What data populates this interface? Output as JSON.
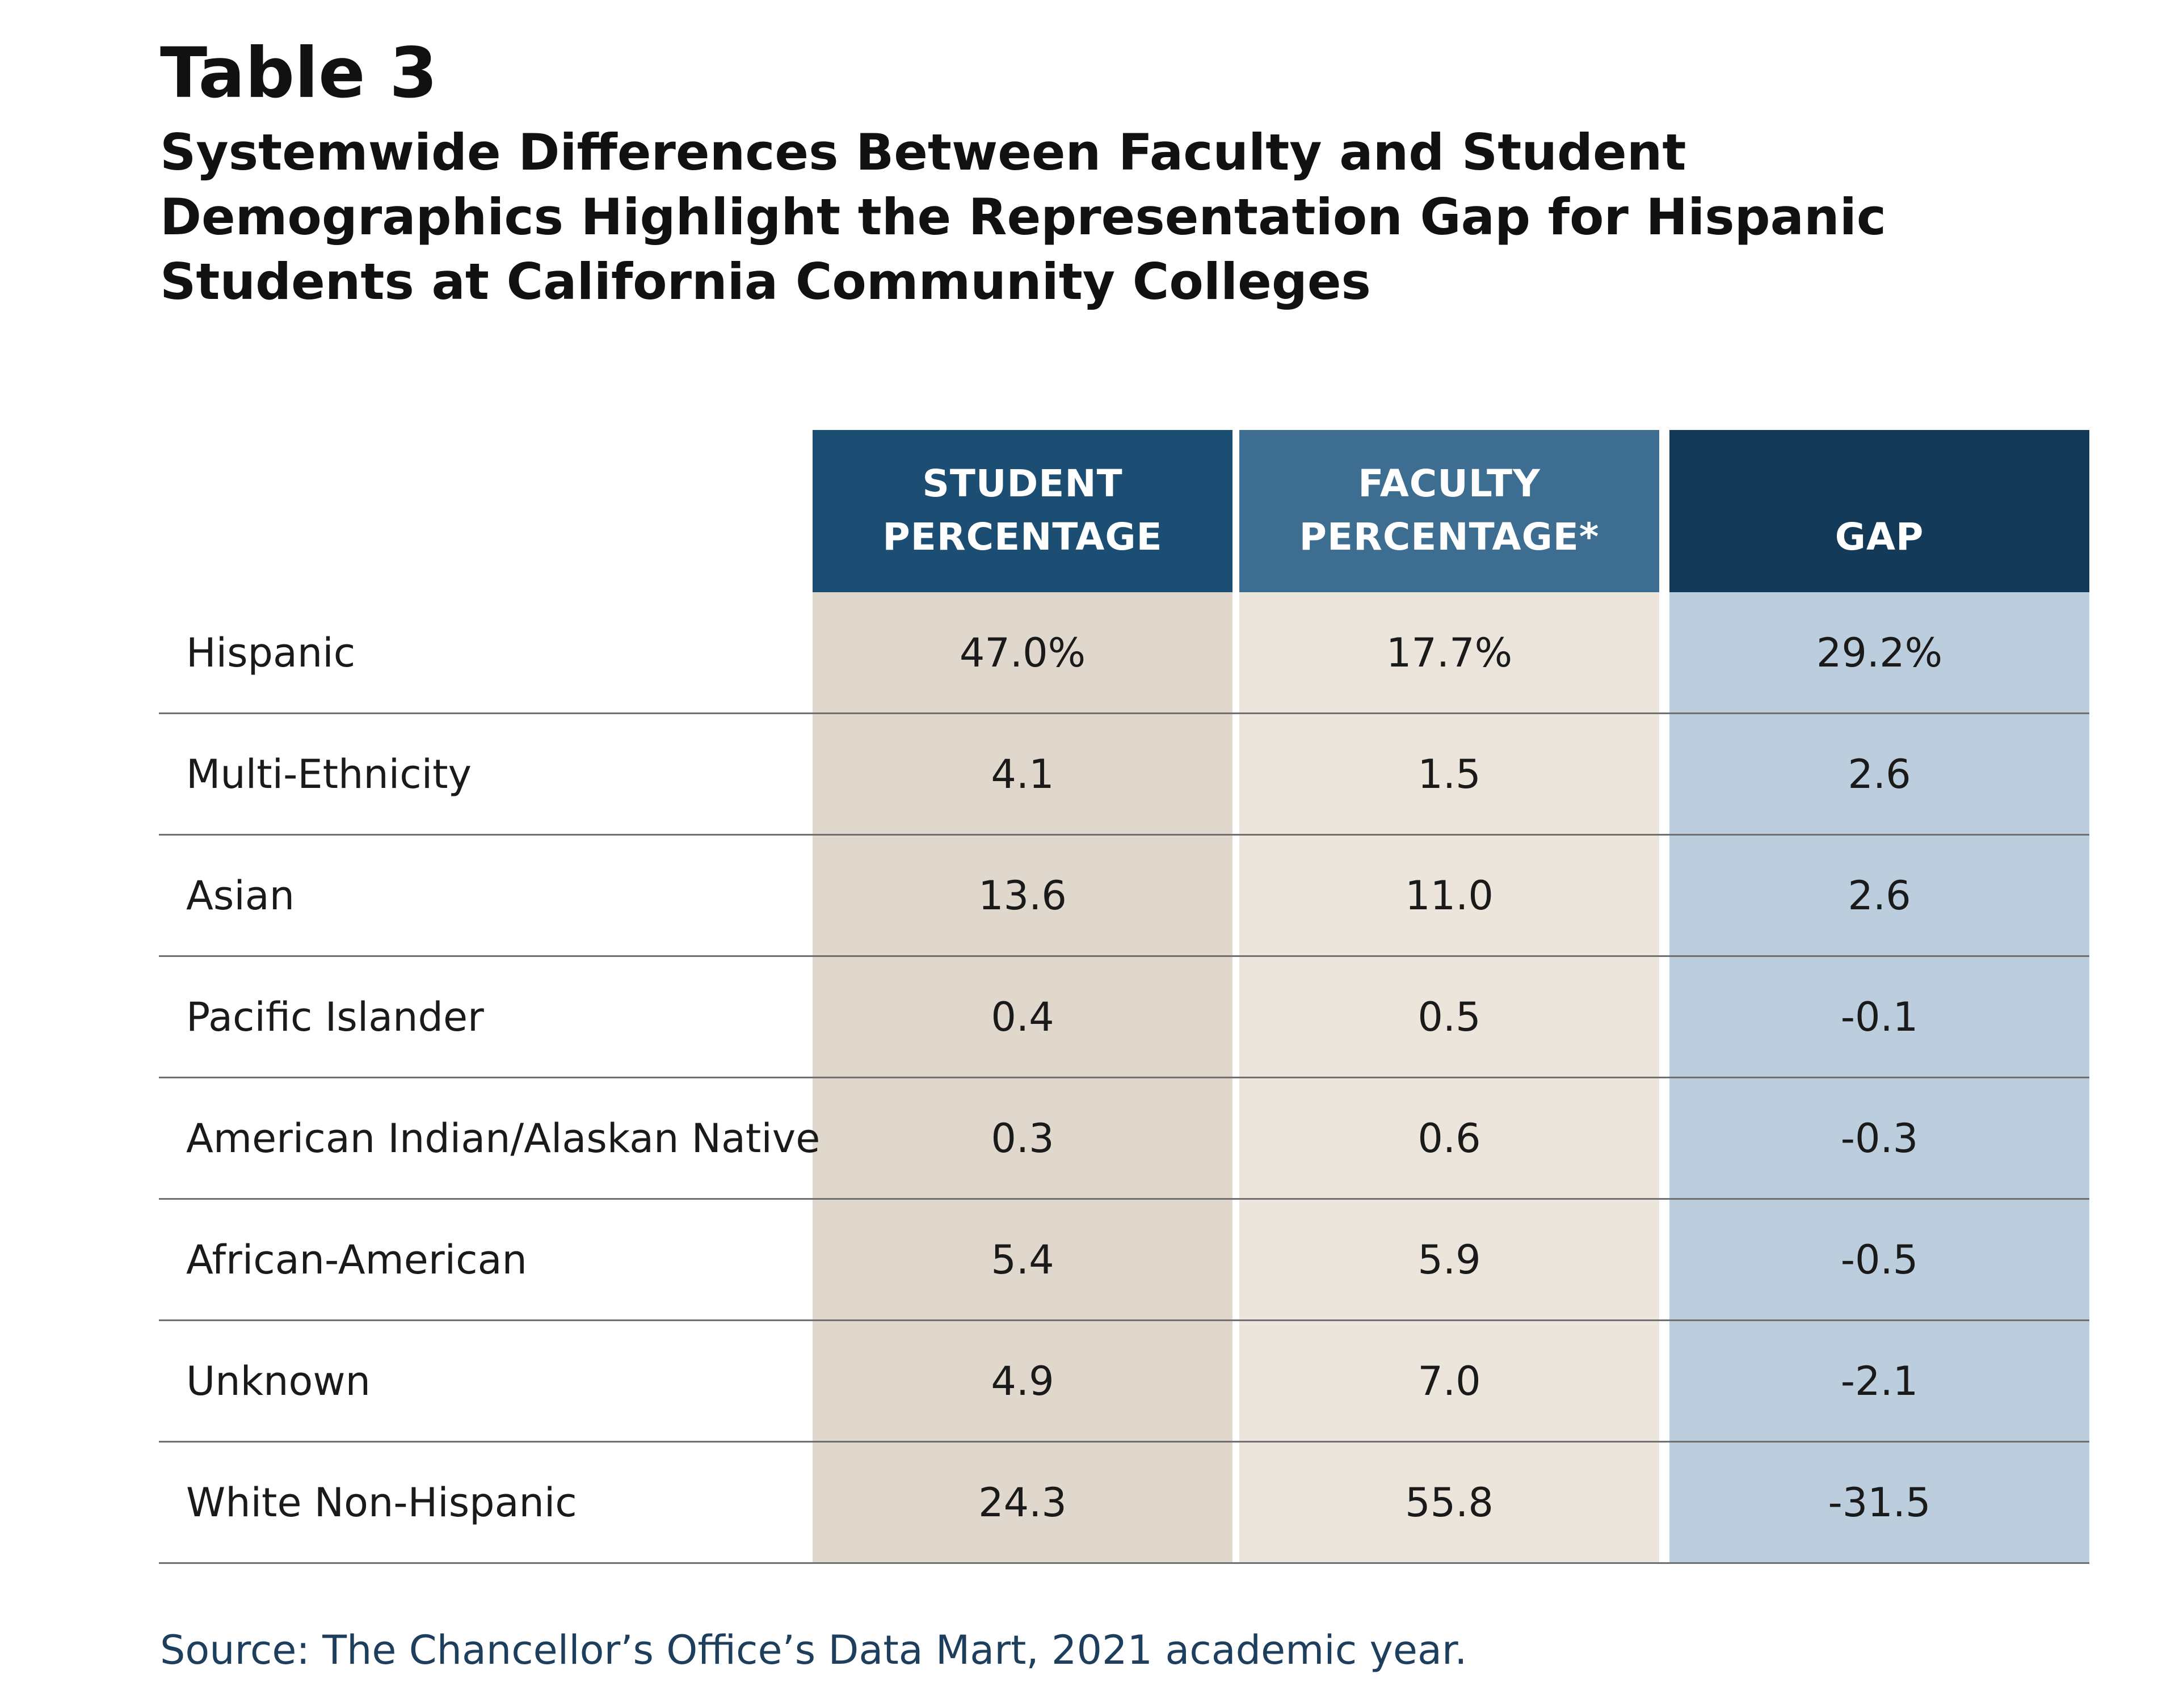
{
  "title": "Table 3",
  "subtitle": "Systemwide Differences Between Faculty and Student Demographics Highlight the Representation Gap for Hispanic Students at California Community Colleges",
  "source": "Source:  The Chancellor’s Office’s Data Mart, 2021 academic year.",
  "colors": {
    "student_header": "#1c4e74",
    "faculty_header": "#3d6e92",
    "gap_header": "#143a5a",
    "student_cell": "#e0d8cc",
    "faculty_cell": "#ebe5dc",
    "gap_cell": "#bccedd"
  },
  "chart_data": {
    "type": "table",
    "title": "Table 3",
    "subtitle": "Systemwide Differences Between Faculty and Student Demographics Highlight the Representation Gap for Hispanic Students at California Community Colleges",
    "columns": [
      {
        "key": "student",
        "line1": "STUDENT",
        "line2": "PERCENTAGE"
      },
      {
        "key": "faculty",
        "line1": "FACULTY",
        "line2": "PERCENTAGE*"
      },
      {
        "key": "gap",
        "line1": "",
        "line2": "GAP"
      }
    ],
    "rows": [
      {
        "label": "Hispanic",
        "student": "47.0%",
        "faculty": "17.7%",
        "gap": "29.2%"
      },
      {
        "label": "Multi-Ethnicity",
        "student": "4.1",
        "faculty": "1.5",
        "gap": "2.6"
      },
      {
        "label": "Asian",
        "student": "13.6",
        "faculty": "11.0",
        "gap": "2.6"
      },
      {
        "label": "Pacific Islander",
        "student": "0.4",
        "faculty": "0.5",
        "gap": "-0.1"
      },
      {
        "label": "American Indian/Alaskan Native",
        "student": "0.3",
        "faculty": "0.6",
        "gap": "-0.3"
      },
      {
        "label": "African-American",
        "student": "5.4",
        "faculty": "5.9",
        "gap": "-0.5"
      },
      {
        "label": "Unknown",
        "student": "4.9",
        "faculty": "7.0",
        "gap": "-2.1"
      },
      {
        "label": "White Non-Hispanic",
        "student": "24.3",
        "faculty": "55.8",
        "gap": "-31.5"
      }
    ]
  }
}
